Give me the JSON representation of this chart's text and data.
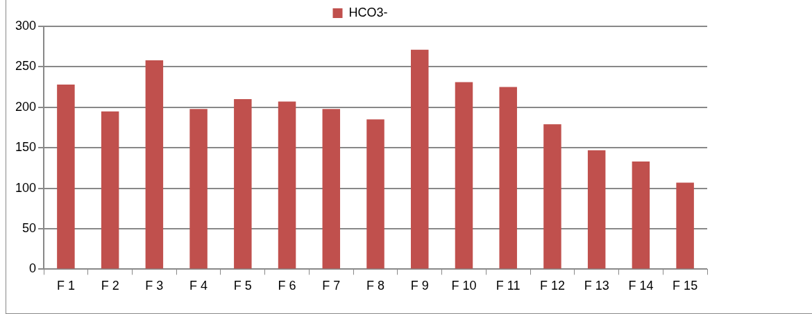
{
  "chart_data": {
    "type": "bar",
    "categories": [
      "F 1",
      "F 2",
      "F 3",
      "F 4",
      "F 5",
      "F 6",
      "F 7",
      "F 8",
      "F 9",
      "F 10",
      "F 11",
      "F 12",
      "F 13",
      "F 14",
      "F 15"
    ],
    "series": [
      {
        "name": "HCO3-",
        "color": "#c0504d",
        "values": [
          228,
          195,
          258,
          198,
          210,
          207,
          198,
          185,
          271,
          231,
          225,
          179,
          147,
          133,
          107
        ]
      }
    ],
    "ylim": [
      0,
      300
    ],
    "yticks": [
      0,
      50,
      100,
      150,
      200,
      250,
      300
    ],
    "grid": "y",
    "legend": "top"
  }
}
